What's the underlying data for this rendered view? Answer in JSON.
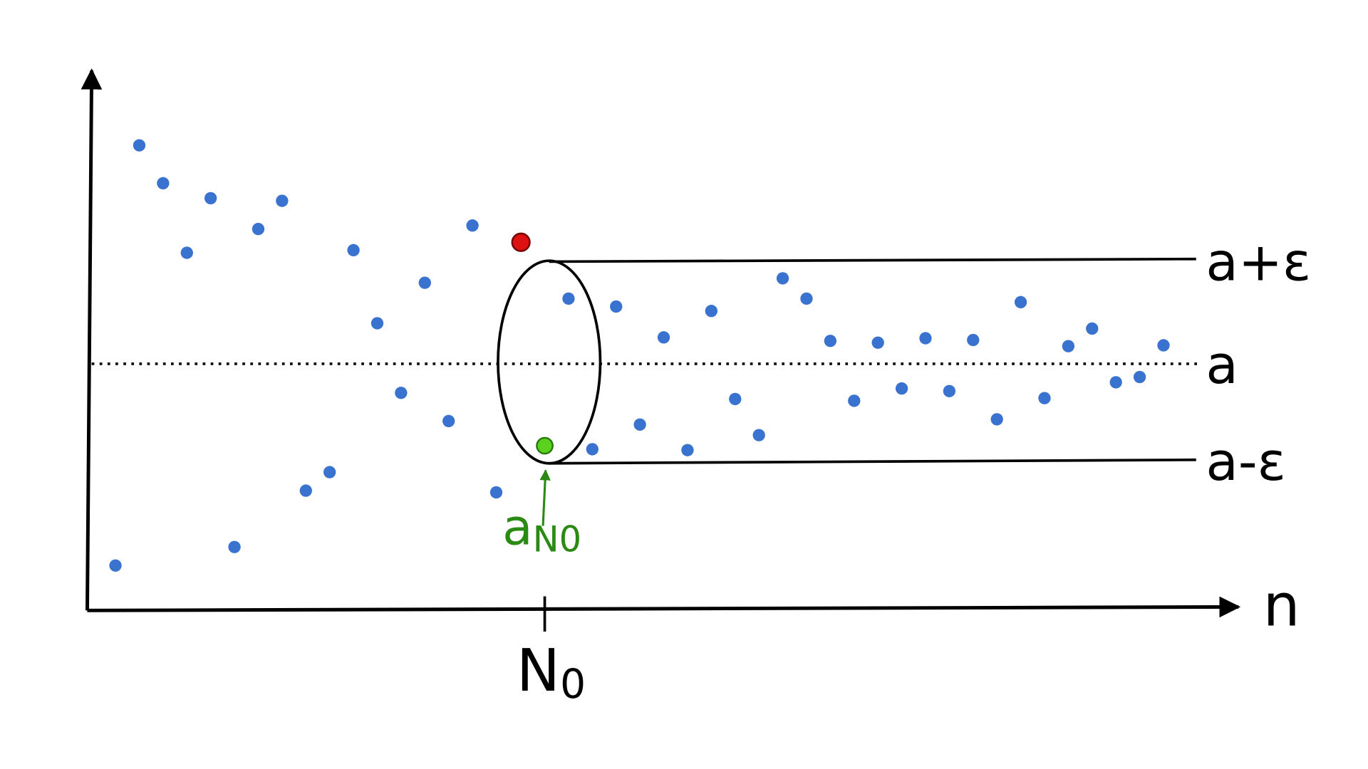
{
  "labels": {
    "upper": "a+ε",
    "limit": "a",
    "lower": "a-ε",
    "x_axis": "n",
    "n0": {
      "base": "N",
      "sub": "0"
    },
    "a_n0": {
      "base": "a",
      "sub": "N0"
    }
  }
}
